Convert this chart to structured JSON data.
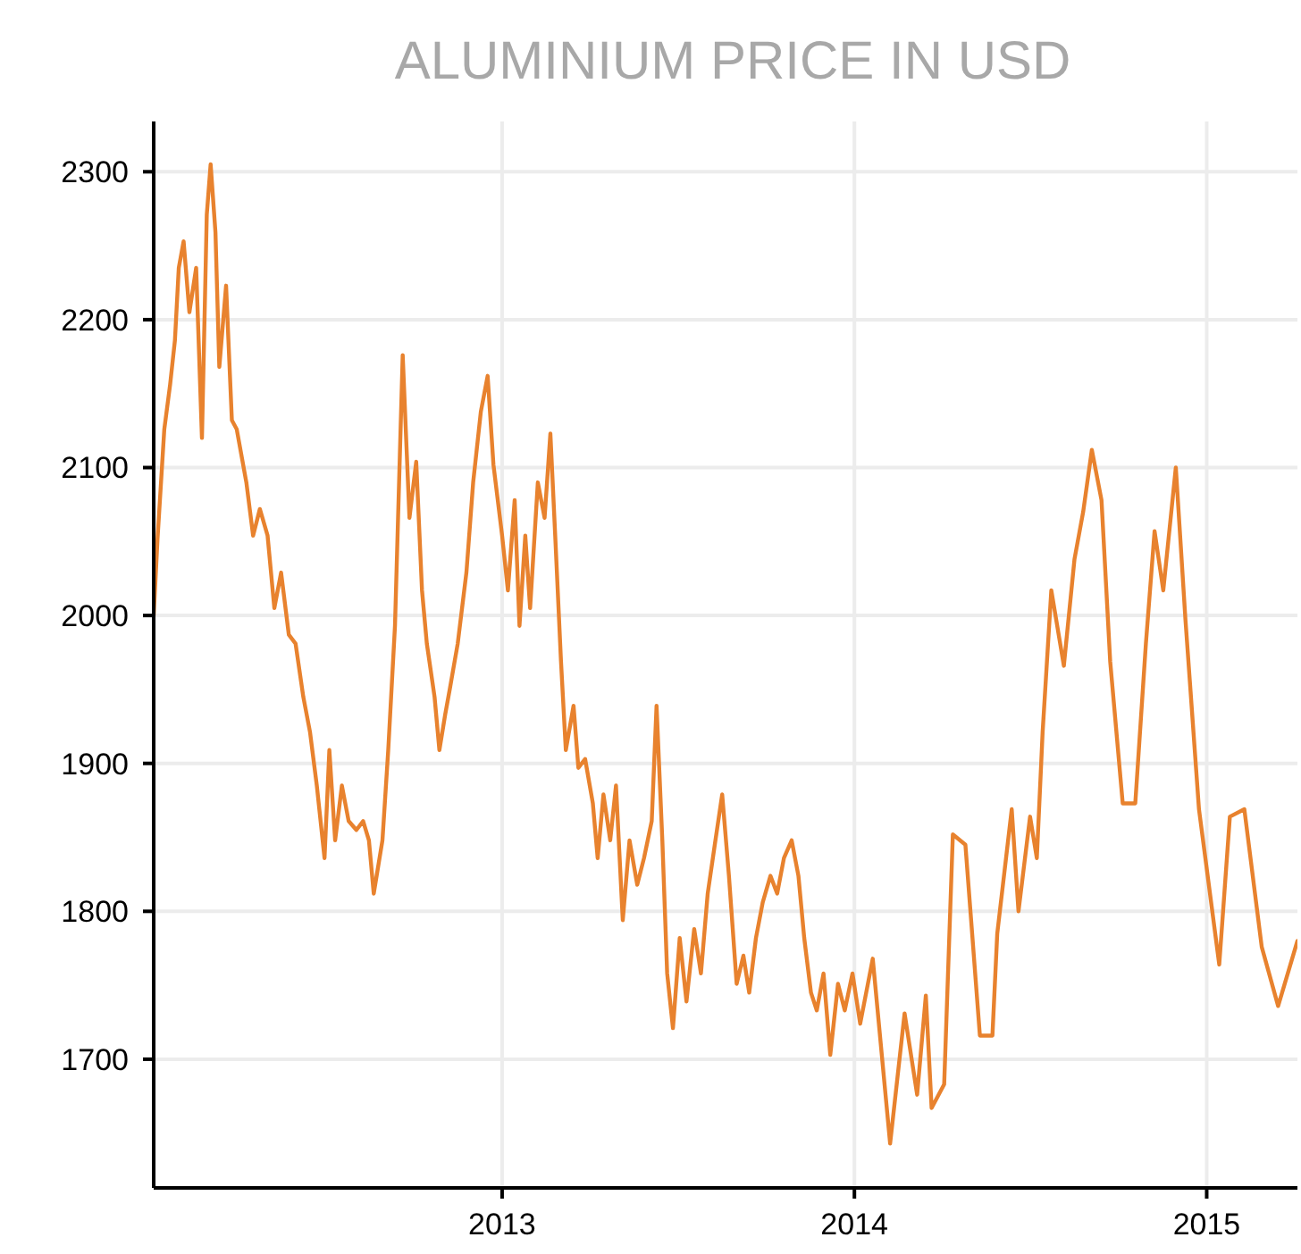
{
  "chart_data": {
    "type": "line",
    "title": "ALUMINIUM PRICE IN USD",
    "xlim": [
      "2012-01-06",
      "2015-04-05"
    ],
    "xticks": [
      "2013",
      "2014",
      "2015"
    ],
    "ylim": [
      1613,
      2334
    ],
    "yticks": [
      1700,
      1800,
      1900,
      2000,
      2100,
      2200,
      2300
    ],
    "grid": true,
    "marker": "none",
    "line_style": "solid",
    "series": [
      {
        "color": "#e8822e",
        "x": [
          "2012-01-06",
          "2012-01-10",
          "2012-01-17",
          "2012-01-23",
          "2012-01-28",
          "2012-02-01",
          "2012-02-06",
          "2012-02-12",
          "2012-02-19",
          "2012-02-25",
          "2012-03-01",
          "2012-03-05",
          "2012-03-10",
          "2012-03-14",
          "2012-03-21",
          "2012-03-27",
          "2012-04-01",
          "2012-04-11",
          "2012-04-18",
          "2012-04-25",
          "2012-05-03",
          "2012-05-10",
          "2012-05-17",
          "2012-05-25",
          "2012-06-01",
          "2012-06-09",
          "2012-06-16",
          "2012-06-23",
          "2012-07-01",
          "2012-07-06",
          "2012-07-12",
          "2012-07-19",
          "2012-07-26",
          "2012-08-03",
          "2012-08-10",
          "2012-08-16",
          "2012-08-21",
          "2012-08-30",
          "2012-09-05",
          "2012-09-12",
          "2012-09-20",
          "2012-09-27",
          "2012-10-04",
          "2012-10-10",
          "2012-10-15",
          "2012-10-23",
          "2012-10-28",
          "2012-11-03",
          "2012-11-08",
          "2012-11-16",
          "2012-11-25",
          "2012-12-02",
          "2012-12-10",
          "2012-12-17",
          "2012-12-23",
          "2013-01-01",
          "2013-01-07",
          "2013-01-14",
          "2013-01-19",
          "2013-01-25",
          "2013-01-30",
          "2013-02-07",
          "2013-02-14",
          "2013-02-20",
          "2013-02-25",
          "2013-03-03",
          "2013-03-08",
          "2013-03-16",
          "2013-03-21",
          "2013-03-28",
          "2013-04-05",
          "2013-04-10",
          "2013-04-16",
          "2013-04-23",
          "2013-04-29",
          "2013-05-06",
          "2013-05-13",
          "2013-05-21",
          "2013-05-28",
          "2013-06-05",
          "2013-06-10",
          "2013-06-16",
          "2013-06-21",
          "2013-06-27",
          "2013-07-04",
          "2013-07-11",
          "2013-07-19",
          "2013-07-26",
          "2013-08-02",
          "2013-08-10",
          "2013-08-17",
          "2013-08-24",
          "2013-09-01",
          "2013-09-08",
          "2013-09-14",
          "2013-09-21",
          "2013-09-28",
          "2013-10-06",
          "2013-10-13",
          "2013-10-20",
          "2013-10-28",
          "2013-11-04",
          "2013-11-10",
          "2013-11-17",
          "2013-11-23",
          "2013-11-30",
          "2013-12-07",
          "2013-12-15",
          "2013-12-22",
          "2013-12-30",
          "2014-01-07",
          "2014-01-20",
          "2014-02-07",
          "2014-02-22",
          "2014-03-07",
          "2014-03-16",
          "2014-03-22",
          "2014-04-04",
          "2014-04-13",
          "2014-04-26",
          "2014-05-11",
          "2014-05-24",
          "2014-05-29",
          "2014-06-13",
          "2014-06-20",
          "2014-07-02",
          "2014-07-09",
          "2014-07-15",
          "2014-07-24",
          "2014-08-06",
          "2014-08-17",
          "2014-08-26",
          "2014-09-04",
          "2014-09-14",
          "2014-09-23",
          "2014-10-06",
          "2014-10-19",
          "2014-10-30",
          "2014-11-08",
          "2014-11-17",
          "2014-11-30",
          "2014-12-10",
          "2014-12-24",
          "2015-01-14",
          "2015-01-25",
          "2015-02-09",
          "2015-02-27",
          "2015-03-16",
          "2015-04-05"
        ],
        "values": [
          2000,
          2052,
          2126,
          2156,
          2186,
          2235,
          2253,
          2205,
          2235,
          2120,
          2271,
          2305,
          2259,
          2168,
          2223,
          2132,
          2126,
          2090,
          2054,
          2072,
          2054,
          2005,
          2029,
          1987,
          1981,
          1945,
          1921,
          1885,
          1836,
          1909,
          1848,
          1885,
          1861,
          1855,
          1861,
          1848,
          1812,
          1848,
          1909,
          1993,
          2176,
          2066,
          2104,
          2017,
          1981,
          1945,
          1909,
          1933,
          1951,
          1981,
          2029,
          2090,
          2138,
          2162,
          2102,
          2054,
          2017,
          2078,
          1993,
          2054,
          2005,
          2090,
          2066,
          2123,
          2054,
          1969,
          1909,
          1939,
          1897,
          1903,
          1873,
          1836,
          1879,
          1848,
          1885,
          1794,
          1848,
          1818,
          1836,
          1861,
          1939,
          1848,
          1758,
          1721,
          1782,
          1739,
          1788,
          1758,
          1812,
          1848,
          1879,
          1824,
          1751,
          1770,
          1745,
          1782,
          1806,
          1824,
          1812,
          1836,
          1848,
          1824,
          1782,
          1745,
          1733,
          1758,
          1703,
          1751,
          1733,
          1758,
          1724,
          1768,
          1643,
          1731,
          1676,
          1743,
          1667,
          1683,
          1852,
          1845,
          1716,
          1716,
          1785,
          1869,
          1800,
          1864,
          1836,
          1921,
          2017,
          1966,
          2038,
          2070,
          2112,
          2078,
          1969,
          1873,
          1873,
          1981,
          2057,
          2017,
          2100,
          1997,
          1869,
          1764,
          1864,
          1869,
          1776,
          1736,
          1780
        ]
      }
    ]
  }
}
